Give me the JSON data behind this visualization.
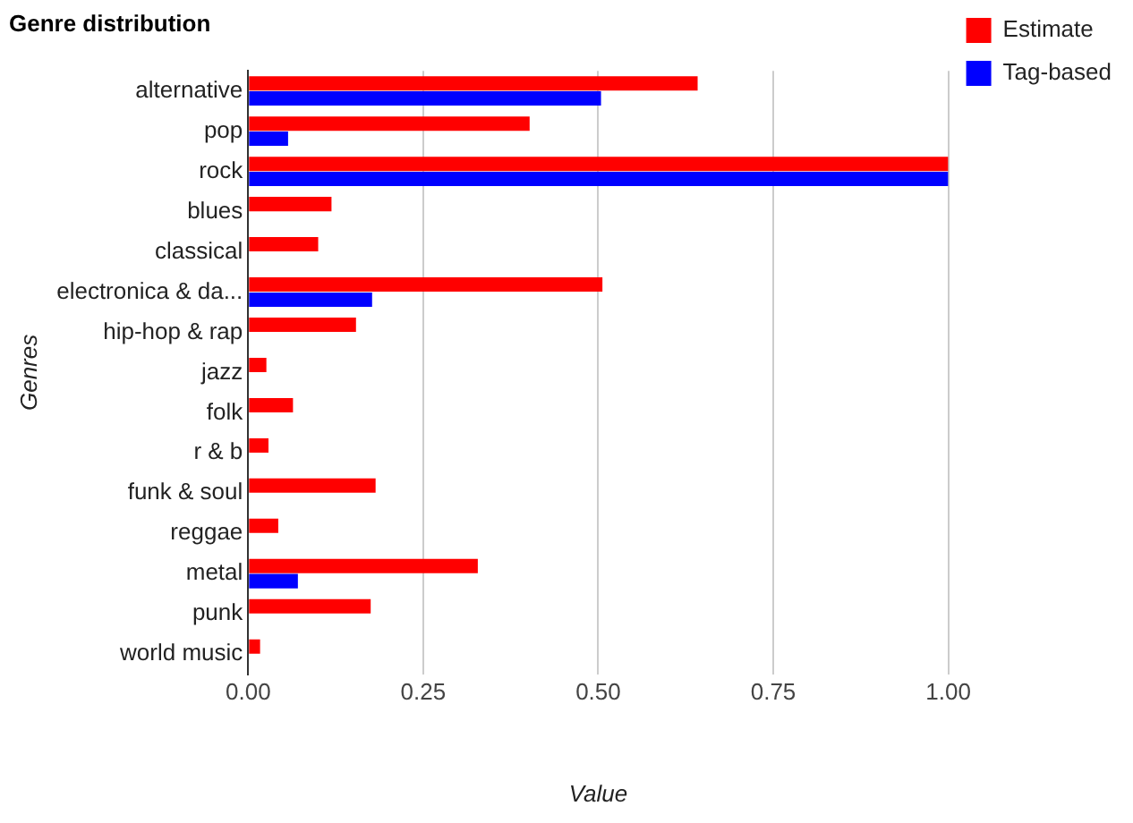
{
  "chart_data": {
    "type": "bar",
    "orientation": "horizontal",
    "title": "Genre distribution",
    "xlabel": "Value",
    "ylabel": "Genres",
    "categories": [
      "alternative",
      "pop",
      "rock",
      "blues",
      "classical",
      "electronica & da...",
      "hip-hop & rap",
      "jazz",
      "folk",
      "r & b",
      "funk & soul",
      "reggae",
      "metal",
      "punk",
      "world music"
    ],
    "series": [
      {
        "name": "Estimate",
        "color": "#ff0000",
        "values": [
          0.642,
          0.402,
          1.0,
          0.119,
          0.1,
          0.506,
          0.154,
          0.026,
          0.064,
          0.029,
          0.182,
          0.043,
          0.328,
          0.175,
          0.017
        ]
      },
      {
        "name": "Tag-based",
        "color": "#0000ff",
        "values": [
          0.504,
          0.057,
          1.0,
          null,
          null,
          0.177,
          null,
          null,
          null,
          null,
          null,
          null,
          0.071,
          null,
          null
        ]
      }
    ],
    "xlim": [
      0,
      1
    ],
    "xticks": [
      {
        "value": 0,
        "label": "0.00"
      },
      {
        "value": 0.25,
        "label": "0.25"
      },
      {
        "value": 0.5,
        "label": "0.50"
      },
      {
        "value": 0.75,
        "label": "0.75"
      },
      {
        "value": 1,
        "label": "1.00"
      }
    ],
    "grid": "x",
    "legend": "top right"
  }
}
